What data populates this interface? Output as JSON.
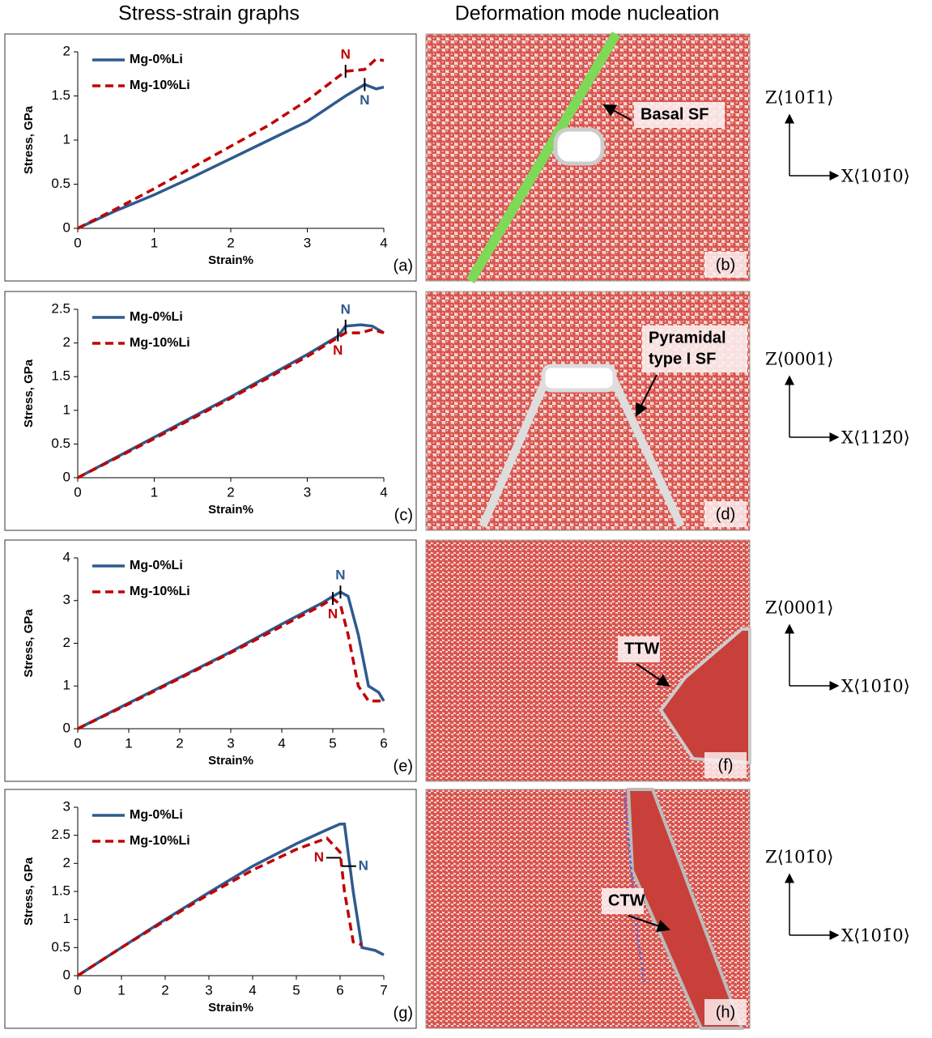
{
  "header": {
    "left": "Stress-strain graphs",
    "right": "Deformation mode nucleation"
  },
  "chart_data": [
    {
      "type": "line",
      "panel_label": "(a)",
      "xlabel": "Strain%",
      "ylabel": "Stress, GPa",
      "xlim": [
        0,
        4
      ],
      "xticks": [
        0,
        1,
        2,
        3,
        4
      ],
      "ylim": [
        0,
        2
      ],
      "yticks": [
        0,
        0.5,
        1,
        1.5,
        2
      ],
      "x": [
        0,
        0.5,
        1,
        1.5,
        2,
        2.5,
        3,
        3.5,
        3.75,
        3.9,
        4
      ],
      "series": [
        {
          "name": "Mg-0%Li",
          "color": "#2e5a8e",
          "values": [
            0,
            0.2,
            0.38,
            0.58,
            0.79,
            1.0,
            1.21,
            1.5,
            1.63,
            1.58,
            1.6
          ]
        },
        {
          "name": "Mg-10%Li",
          "color": "#c00000",
          "values": [
            0,
            0.22,
            0.45,
            0.69,
            0.93,
            1.17,
            1.45,
            1.78,
            1.8,
            1.92,
            1.9
          ]
        }
      ],
      "annotations": [
        {
          "text": "N",
          "x": 3.5,
          "y": 1.78,
          "color": "#c00000",
          "side": "up"
        },
        {
          "text": "N",
          "x": 3.75,
          "y": 1.63,
          "color": "#2e5a8e",
          "side": "down"
        }
      ]
    },
    {
      "type": "line",
      "panel_label": "(c)",
      "xlabel": "Strain%",
      "ylabel": "Stress, GPa",
      "xlim": [
        0,
        4
      ],
      "xticks": [
        0,
        1,
        2,
        3,
        4
      ],
      "ylim": [
        0,
        2.5
      ],
      "yticks": [
        0,
        0.5,
        1,
        1.5,
        2,
        2.5
      ],
      "x": [
        0,
        1,
        2,
        3,
        3.4,
        3.5,
        3.7,
        3.85,
        4
      ],
      "series": [
        {
          "name": "Mg-0%Li",
          "color": "#2e5a8e",
          "values": [
            0,
            0.6,
            1.2,
            1.83,
            2.1,
            2.25,
            2.27,
            2.25,
            2.15
          ]
        },
        {
          "name": "Mg-10%Li",
          "color": "#c00000",
          "values": [
            0,
            0.58,
            1.18,
            1.8,
            2.08,
            2.15,
            2.15,
            2.2,
            2.15
          ]
        }
      ],
      "annotations": [
        {
          "text": "N",
          "x": 3.5,
          "y": 2.25,
          "color": "#2e5a8e",
          "side": "up"
        },
        {
          "text": "N",
          "x": 3.4,
          "y": 2.12,
          "color": "#c00000",
          "side": "down"
        }
      ]
    },
    {
      "type": "line",
      "panel_label": "(e)",
      "xlabel": "Strain%",
      "ylabel": "Stress, GPa",
      "xlim": [
        0,
        6
      ],
      "xticks": [
        0,
        1,
        2,
        3,
        4,
        5,
        6
      ],
      "ylim": [
        0,
        4
      ],
      "yticks": [
        0,
        1,
        2,
        3,
        4
      ],
      "x": [
        0,
        1,
        2,
        3,
        4,
        4.8,
        5,
        5.15,
        5.3,
        5.5,
        5.7,
        5.9,
        6
      ],
      "series": [
        {
          "name": "Mg-0%Li",
          "color": "#2e5a8e",
          "values": [
            0,
            0.6,
            1.2,
            1.8,
            2.45,
            2.95,
            3.1,
            3.2,
            3.1,
            2.2,
            1.0,
            0.85,
            0.65
          ]
        },
        {
          "name": "Mg-10%Li",
          "color": "#c00000",
          "values": [
            0,
            0.58,
            1.18,
            1.78,
            2.4,
            2.9,
            3.05,
            2.9,
            2.2,
            1.0,
            0.65,
            0.65,
            0.65
          ]
        }
      ],
      "annotations": [
        {
          "text": "N",
          "x": 5.15,
          "y": 3.2,
          "color": "#2e5a8e",
          "side": "up"
        },
        {
          "text": "N",
          "x": 5,
          "y": 3.05,
          "color": "#c00000",
          "side": "down"
        }
      ]
    },
    {
      "type": "line",
      "panel_label": "(g)",
      "xlabel": "Strain%",
      "ylabel": "Stress, GPa",
      "xlim": [
        0,
        7
      ],
      "xticks": [
        0,
        1,
        2,
        3,
        4,
        5,
        6,
        7
      ],
      "ylim": [
        0,
        3
      ],
      "yticks": [
        0,
        0.5,
        1,
        1.5,
        2,
        2.5,
        3
      ],
      "x": [
        0,
        1,
        2,
        3,
        4,
        5,
        5.7,
        6,
        6.1,
        6.3,
        6.5,
        6.8,
        7
      ],
      "series": [
        {
          "name": "Mg-0%Li",
          "color": "#2e5a8e",
          "values": [
            0,
            0.5,
            1.0,
            1.48,
            1.95,
            2.35,
            2.6,
            2.7,
            2.7,
            1.5,
            0.5,
            0.45,
            0.37
          ]
        },
        {
          "name": "Mg-10%Li",
          "color": "#c00000",
          "values": [
            0,
            0.5,
            0.98,
            1.45,
            1.88,
            2.25,
            2.45,
            2.2,
            1.5,
            0.6,
            0.55,
            null,
            null
          ]
        }
      ],
      "annotations": [
        {
          "text": "N",
          "x": 5.85,
          "y": 2.1,
          "color": "#c00000",
          "side": "left"
        },
        {
          "text": "N",
          "x": 6.2,
          "y": 1.95,
          "color": "#2e5a8e",
          "side": "right"
        }
      ]
    }
  ],
  "images": [
    {
      "label": "(b)",
      "callout": [
        "Basal SF"
      ]
    },
    {
      "label": "(d)",
      "callout": [
        "Pyramidal",
        "type I SF"
      ]
    },
    {
      "label": "(f)",
      "callout": [
        "TTW"
      ]
    },
    {
      "label": "(h)",
      "callout": [
        "CTW"
      ]
    }
  ],
  "axes": [
    {
      "z": "Z⟨101̄1⟩",
      "x": "X⟨101̄0⟩"
    },
    {
      "z": "Z⟨0001⟩",
      "x": "X⟨112̄0⟩"
    },
    {
      "z": "Z⟨0001⟩",
      "x": "X⟨101̄0⟩"
    },
    {
      "z": "Z⟨101̄0⟩",
      "x": "X⟨101̄0⟩"
    }
  ]
}
